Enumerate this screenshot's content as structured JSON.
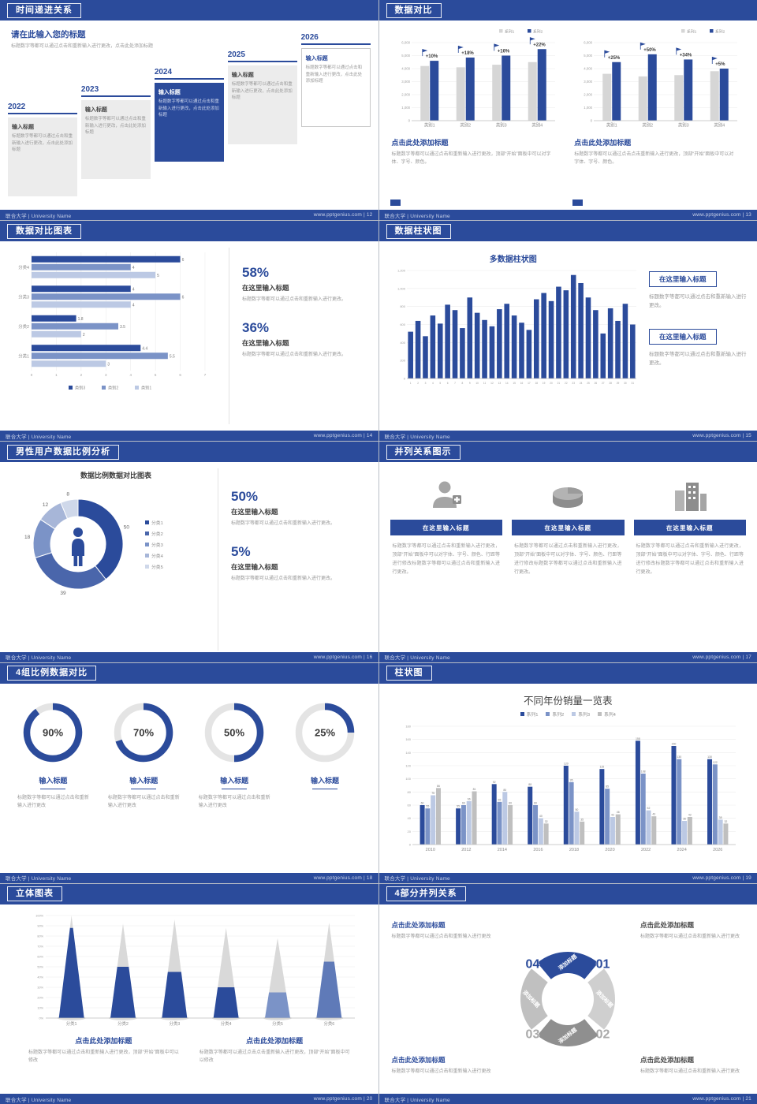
{
  "brand": {
    "footer_left": "联合大学 | University Name",
    "footer_site": "www.pptgenius.com"
  },
  "colors": {
    "primary": "#2b4b9b",
    "gray_bar": "#d6d6d6",
    "text_gray": "#999999"
  },
  "slides": {
    "timeline": {
      "page": "12",
      "footer_right": "www.pptgenius.com | 12",
      "header": "时间递进关系",
      "title": "请在此输入您的标题",
      "subtitle": "标题数字等都可以通过点击和重新输入进行更改，点击此处添加标题",
      "years": [
        "2022",
        "2023",
        "2024",
        "2025",
        "2026"
      ],
      "box_title": "输入标题",
      "box_body": "标题数字等都可以通过点击和重新输入进行更改，点击此处添加标题"
    },
    "compare": {
      "page": "13",
      "footer_right": "www.pptgenius.com | 13",
      "header": "数据对比",
      "caption_title": "点击此处添加标题",
      "caption_body_left": "标题数字等都可以通过点击和重新输入进行更改，顶部“开始”面板中可以对字体、字号、颜色。",
      "caption_body_right": "标题数字等都可以通过点击点击重新输入进行更改，顶部“开始”面板中可以对字体、字号、颜色。"
    },
    "hbar": {
      "page": "14",
      "footer_right": "www.pptgenius.com | 14",
      "header": "数据对比图表",
      "stats": [
        {
          "pct": "58%",
          "title": "在这里输入标题",
          "body": "标题数字等都可以通过点击和重新输入进行更改。"
        },
        {
          "pct": "36%",
          "title": "在这里输入标题",
          "body": "标题数字等都可以通过点击和重新输入进行更改。"
        }
      ]
    },
    "multibar": {
      "page": "15",
      "footer_right": "www.pptgenius.com | 15",
      "header": "数据柱状图",
      "blocks": [
        {
          "title": "在这里输入标题",
          "body": "标题数字等都可以通过点击和重新输入进行更改。"
        },
        {
          "title": "在这里输入标题",
          "body": "标题数字等都可以通过点击和重新输入进行更改。"
        }
      ]
    },
    "male": {
      "page": "16",
      "footer_right": "www.pptgenius.com | 16",
      "header": "男性用户数据比例分析",
      "chart_title": "数据比例数据对比图表",
      "stats": [
        {
          "pct": "50%",
          "title": "在这里输入标题",
          "body": "标题数字等都可以通过点击和重新输入进行更改。"
        },
        {
          "pct": "5%",
          "title": "在这里输入标题",
          "body": "标题数字等都可以通过点击和重新输入进行更改。"
        }
      ]
    },
    "parallel": {
      "page": "17",
      "footer_right": "www.pptgenius.com | 17",
      "header": "并列关系图示",
      "banner": "在这里输入标题",
      "body": "标题数字等都可以通过点击和重新输入进行更改，顶部“开始”面板中可以对字体、字号、颜色、行距等进行修改标题数字等都可以通过点击和重新输入进行更改。"
    },
    "rings": {
      "page": "18",
      "footer_right": "www.pptgenius.com | 18",
      "header": "4组比例数据对比",
      "item_title": "输入标题",
      "item_body": "标题数字等都可以通过点击和重新输入进行更改"
    },
    "years": {
      "page": "19",
      "footer_right": "www.pptgenius.com | 19",
      "header": "柱状图",
      "chart_title": "不同年份销量一览表"
    },
    "cones": {
      "page": "20",
      "footer_right": "www.pptgenius.com | 20",
      "header": "立体图表",
      "captions": [
        {
          "title": "点击此处添加标题",
          "body": "标题数字等都可以通过点击和重新输入进行更改，顶部“开始”面板中可以修改"
        },
        {
          "title": "点击此处添加标题",
          "body": "标题数字等都可以通过点击点击重新输入进行更改，顶部“开始”面板中可以修改"
        }
      ]
    },
    "quad": {
      "page": "21",
      "footer_right": "www.pptgenius.com | 21",
      "header": "4部分并列关系",
      "blocks": [
        {
          "title": "点击此处添加标题",
          "body": "标题数字等都可以通过点击和重新输入进行更改"
        },
        {
          "title": "点击此处添加标题",
          "body": "标题数字等都可以通过点击和重新输入进行更改"
        },
        {
          "title": "点击此处添加标题",
          "body": "标题数字等都可以通过点击和重新输入进行更改"
        },
        {
          "title": "点击此处添加标题",
          "body": "标题数字等都可以通过点击和重新输入进行更改"
        }
      ]
    }
  },
  "chart_data": [
    {
      "id": "compare-left",
      "type": "bar",
      "categories": [
        "类别1",
        "类别2",
        "类别3",
        "类别4"
      ],
      "series": [
        {
          "name": "系列1",
          "color": "#d6d6d6",
          "values": [
            4200,
            4100,
            4300,
            4500
          ]
        },
        {
          "name": "系列2",
          "color": "#2b4b9b",
          "values": [
            4600,
            4850,
            5000,
            5500
          ]
        }
      ],
      "growth_labels": [
        "+10%",
        "+18%",
        "+16%",
        "+22%"
      ],
      "ylim": [
        0,
        6000
      ],
      "ytick_step": 1000,
      "grid": true,
      "legend_position": "top-right"
    },
    {
      "id": "compare-right",
      "type": "bar",
      "categories": [
        "类别1",
        "类别2",
        "类别3",
        "类别4"
      ],
      "series": [
        {
          "name": "系列1",
          "color": "#d6d6d6",
          "values": [
            3600,
            3400,
            3500,
            3800
          ]
        },
        {
          "name": "系列2",
          "color": "#2b4b9b",
          "values": [
            4500,
            5100,
            4700,
            4000
          ]
        }
      ],
      "growth_labels": [
        "+25%",
        "+50%",
        "+34%",
        "+5%"
      ],
      "ylim": [
        0,
        6000
      ],
      "ytick_step": 1000,
      "grid": true,
      "legend_position": "top-right"
    },
    {
      "id": "hbar",
      "type": "bar",
      "orientation": "horizontal",
      "categories": [
        "分类4",
        "分类3",
        "分类2",
        "分类1"
      ],
      "series": [
        {
          "name": "类别3",
          "color": "#2b4b9b",
          "values": [
            6,
            4,
            1.8,
            4.4
          ]
        },
        {
          "name": "类别2",
          "color": "#7b93c7",
          "values": [
            4,
            6,
            3.5,
            5.5
          ]
        },
        {
          "name": "类别1",
          "color": "#bcc9e4",
          "values": [
            5,
            4,
            2,
            3
          ]
        }
      ],
      "xlim": [
        0,
        7
      ],
      "xtick_step": 1,
      "grid": true,
      "legend_position": "bottom"
    },
    {
      "id": "multibar",
      "type": "bar",
      "title": "多数据柱状图",
      "color": "#2b4b9b",
      "x": [
        1,
        2,
        3,
        4,
        5,
        6,
        7,
        8,
        9,
        10,
        11,
        12,
        13,
        14,
        15,
        16,
        17,
        18,
        19,
        20,
        21,
        22,
        23,
        24,
        25,
        26,
        27,
        28,
        29,
        30,
        31
      ],
      "values": [
        520,
        640,
        470,
        700,
        610,
        820,
        760,
        560,
        900,
        730,
        650,
        580,
        770,
        830,
        700,
        620,
        540,
        880,
        950,
        860,
        1020,
        980,
        1150,
        1060,
        900,
        760,
        500,
        780,
        640,
        830,
        600
      ],
      "ylim": [
        0,
        1200
      ],
      "ytick_step": 200,
      "grid": true
    },
    {
      "id": "donut",
      "type": "pie",
      "labels": [
        "分类1",
        "分类2",
        "分类3",
        "分类4",
        "分类5"
      ],
      "values": [
        50,
        39,
        18,
        12,
        8
      ],
      "colors": [
        "#2b4b9b",
        "#4a66ab",
        "#7b93c7",
        "#a7b6d8",
        "#cfd8ea"
      ],
      "center_icon": "male-person-icon",
      "legend_position": "right"
    },
    {
      "id": "rings",
      "type": "pie",
      "subtype": "progress-rings",
      "values": [
        90,
        70,
        50,
        25
      ],
      "unit": "%",
      "color": "#2b4b9b",
      "track_color": "#e4e4e4"
    },
    {
      "id": "years",
      "type": "bar",
      "title": "不同年份销量一览表",
      "categories": [
        "2010",
        "2012",
        "2014",
        "2016",
        "2018",
        "2020",
        "2022",
        "2024",
        "2026"
      ],
      "series": [
        {
          "name": "系列1",
          "color": "#2b4b9b",
          "values": [
            60,
            55,
            92,
            88,
            120,
            115,
            158,
            150,
            130
          ]
        },
        {
          "name": "系列2",
          "color": "#7b93c7",
          "values": [
            55,
            60,
            65,
            60,
            95,
            85,
            108,
            130,
            122
          ]
        },
        {
          "name": "系列3",
          "color": "#bcc9e4",
          "values": [
            75,
            66,
            80,
            40,
            50,
            42,
            52,
            36,
            38
          ]
        },
        {
          "name": "系列4",
          "color": "#bfbfbf",
          "values": [
            86,
            81,
            60,
            32,
            35,
            46,
            43,
            42,
            32
          ]
        }
      ],
      "ylim": [
        0,
        180
      ],
      "ytick_step": 20,
      "grid": true,
      "legend_position": "top",
      "value_labels": true
    },
    {
      "id": "cones",
      "type": "bar",
      "subtype": "3d-cone",
      "categories": [
        "分类1",
        "分类2",
        "分类3",
        "分类4",
        "分类5",
        "分类6"
      ],
      "totals": [
        100,
        92,
        96,
        88,
        78,
        93
      ],
      "highlight_values": [
        88,
        50,
        45,
        30,
        25,
        55
      ],
      "bottom_colors": [
        "#2b4b9b",
        "#2b4b9b",
        "#2b4b9b",
        "#2b4b9b",
        "#7b93c7",
        "#5f7ab8"
      ],
      "top_color": "#d9d9d9",
      "ylim": [
        0,
        100
      ],
      "ytick_step": 10,
      "unit": "%",
      "grid": true
    },
    {
      "id": "quad",
      "type": "pie",
      "subtype": "4-part-ring",
      "segments": [
        {
          "label": "添加标题",
          "number": "01",
          "color": "#2b4b9b"
        },
        {
          "label": "添加标题",
          "number": "02",
          "color": "#cfcfcf"
        },
        {
          "label": "添加标题",
          "number": "03",
          "color": "#8f8f8f"
        },
        {
          "label": "添加标题",
          "number": "04",
          "color": "#c0c0c0"
        }
      ]
    }
  ]
}
